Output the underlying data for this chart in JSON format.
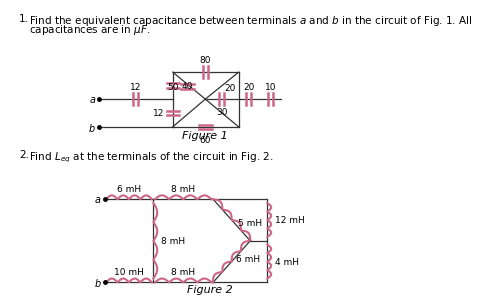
{
  "bg_color": "#ffffff",
  "text_color": "#000000",
  "component_color": "#cc6688",
  "line_color": "#333333",
  "fig1_label": "Figure 1",
  "fig2_label": "Figure 2",
  "p1_line1": "Find the equivalent capacitance between terminals $a$ and $b$ in the circuit of Fig. 1. All",
  "p1_line2": "capacitances are in $\\mu F$.",
  "p2_text": "Find $L_{eq}$ at the terminals of the circuit in Fig. 2."
}
